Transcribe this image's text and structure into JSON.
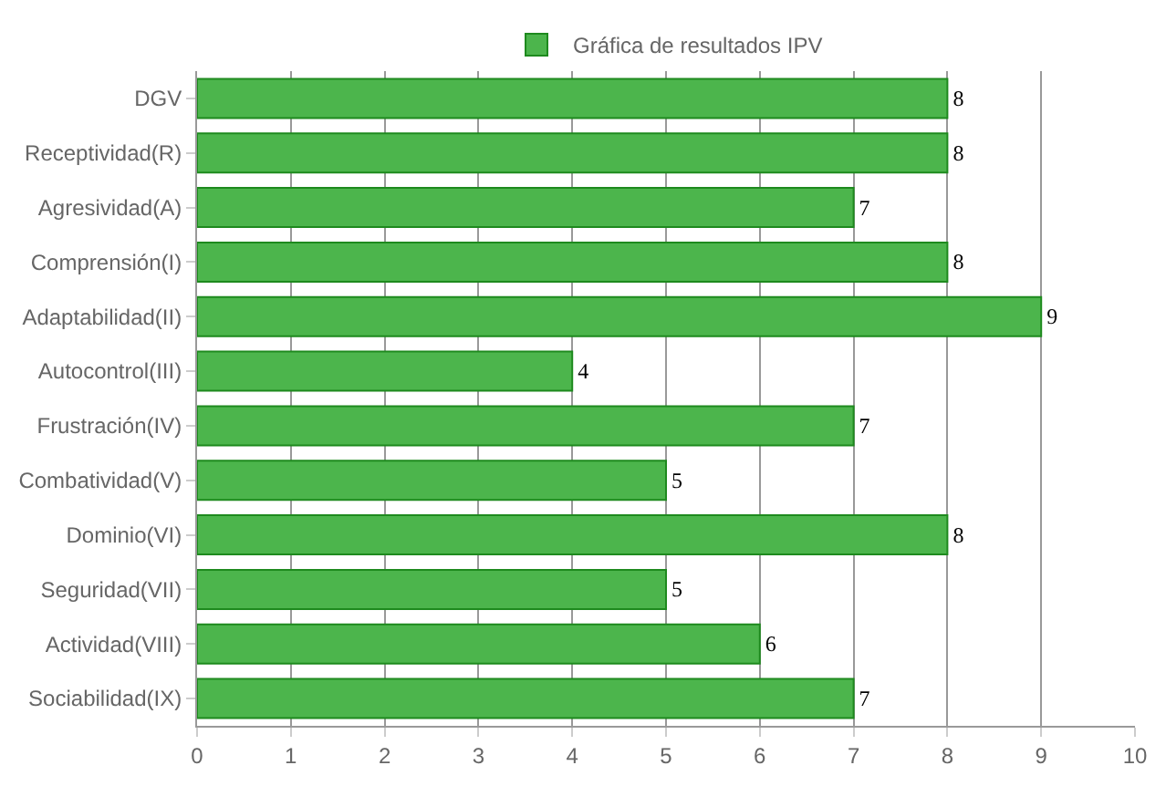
{
  "chart_data": {
    "type": "bar",
    "orientation": "horizontal",
    "categories": [
      "DGV",
      "Receptividad(R)",
      "Agresividad(A)",
      "Comprensión(I)",
      "Adaptabilidad(II)",
      "Autocontrol(III)",
      "Frustración(IV)",
      "Combatividad(V)",
      "Dominio(VI)",
      "Seguridad(VII)",
      "Actividad(VIII)",
      "Sociabilidad(IX)"
    ],
    "series": [
      {
        "name": "Gráfica de resultados IPV",
        "color": "#4cb54c",
        "values": [
          8,
          8,
          7,
          8,
          9,
          4,
          7,
          5,
          8,
          5,
          6,
          7
        ]
      }
    ],
    "xlim": [
      0,
      10
    ],
    "xticks": [
      0,
      1,
      2,
      3,
      4,
      5,
      6,
      7,
      8,
      9,
      10
    ],
    "grid": "x",
    "legend": "top",
    "data_labels": true
  }
}
